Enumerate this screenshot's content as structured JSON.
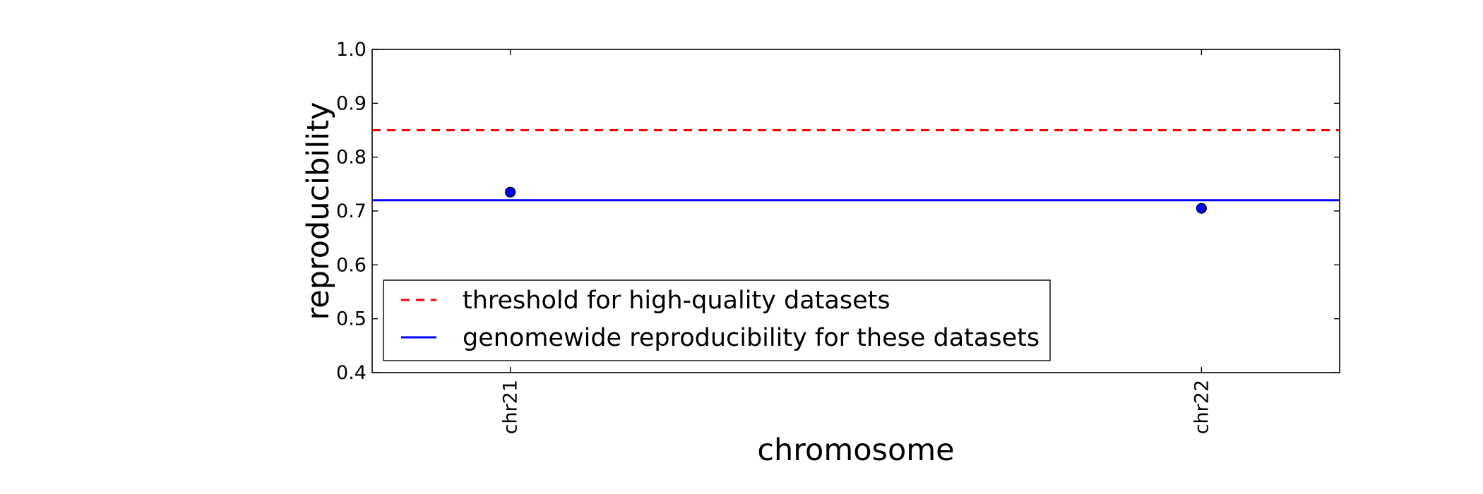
{
  "chart_data": {
    "type": "scatter",
    "title": "",
    "xlabel": "chromosome",
    "ylabel": "reproducibility",
    "categories": [
      "chr21",
      "chr22"
    ],
    "values": [
      0.735,
      0.705
    ],
    "ylim": [
      0.4,
      1.0
    ],
    "yticks": [
      "0.4",
      "0.5",
      "0.6",
      "0.7",
      "0.8",
      "0.9",
      "1.0"
    ],
    "xtick_rotation": "vertical",
    "grid": false,
    "reference_lines": [
      {
        "name": "threshold for high-quality datasets",
        "y": 0.85,
        "style": "dashed",
        "color": "#ff0000"
      },
      {
        "name": "genomewide reproducibility for these datasets",
        "y": 0.72,
        "style": "solid",
        "color": "#0000ff"
      }
    ],
    "marker_color": "#0000ff",
    "legend_position": "lower-left"
  }
}
